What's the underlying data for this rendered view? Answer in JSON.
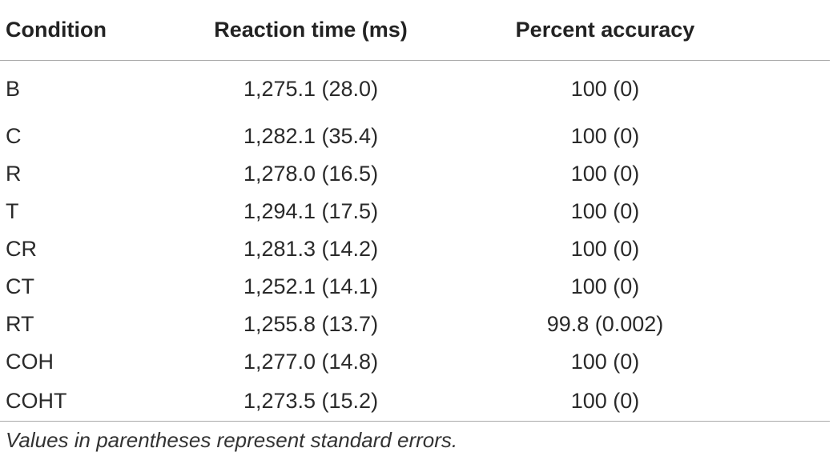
{
  "table": {
    "headers": {
      "condition": "Condition",
      "reaction_time": "Reaction time (ms)",
      "percent_accuracy": "Percent accuracy"
    },
    "rows": [
      {
        "condition": "B",
        "reaction_time": "1,275.1 (28.0)",
        "percent_accuracy": "100 (0)"
      },
      {
        "condition": "C",
        "reaction_time": "1,282.1 (35.4)",
        "percent_accuracy": "100 (0)"
      },
      {
        "condition": "R",
        "reaction_time": "1,278.0 (16.5)",
        "percent_accuracy": "100 (0)"
      },
      {
        "condition": "T",
        "reaction_time": "1,294.1 (17.5)",
        "percent_accuracy": "100 (0)"
      },
      {
        "condition": "CR",
        "reaction_time": "1,281.3 (14.2)",
        "percent_accuracy": "100 (0)"
      },
      {
        "condition": "CT",
        "reaction_time": "1,252.1 (14.1)",
        "percent_accuracy": "100 (0)"
      },
      {
        "condition": "RT",
        "reaction_time": "1,255.8 (13.7)",
        "percent_accuracy": "99.8 (0.002)"
      },
      {
        "condition": "COH",
        "reaction_time": "1,277.0 (14.8)",
        "percent_accuracy": "100 (0)"
      },
      {
        "condition": "COHT",
        "reaction_time": "1,273.5 (15.2)",
        "percent_accuracy": "100 (0)"
      }
    ]
  },
  "footnote": "Values in parentheses represent standard errors."
}
